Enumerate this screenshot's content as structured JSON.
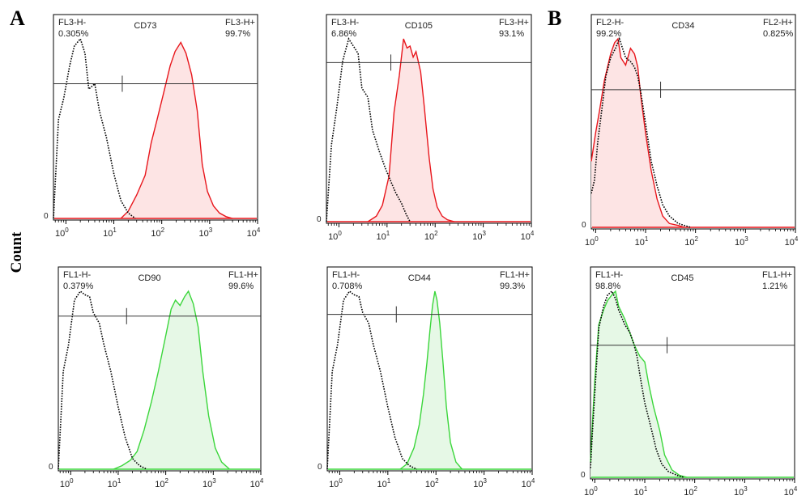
{
  "figure": {
    "panel_letters": [
      "A",
      "B"
    ],
    "ylabel": "Count"
  },
  "colors": {
    "red": "#e8161c",
    "red_fill": "#fde4e4",
    "green": "#3bd63b",
    "green_fill": "#e6f8e6",
    "isotype": "#000000"
  },
  "chart_data": [
    {
      "type": "area",
      "panel": "A",
      "marker": "CD73",
      "gate_left": {
        "label": "FL3-H-",
        "pct": "0.305%"
      },
      "gate_right": {
        "label": "FL3-H+",
        "pct": "99.7%"
      },
      "x_tick_labels": [
        "10^0",
        "10^1",
        "10^2",
        "10^3",
        "10^4"
      ],
      "xlim": [
        0.55,
        10000
      ],
      "xscale": "log",
      "ylim": [
        0,
        100
      ],
      "y_tick_labels": [
        "0"
      ],
      "gate_threshold": 15,
      "gate_level": 75,
      "series": [
        {
          "style": "isotype-dotted",
          "x": [
            0.55,
            0.7,
            0.9,
            1.2,
            1.5,
            2,
            2.5,
            3,
            4,
            5,
            7,
            10,
            14,
            20,
            28
          ],
          "y": [
            0,
            55,
            67,
            85,
            96,
            100,
            92,
            72,
            75,
            60,
            45,
            25,
            10,
            3,
            0
          ]
        },
        {
          "style": "stained-red",
          "x": [
            14,
            20,
            30,
            45,
            60,
            80,
            110,
            150,
            190,
            250,
            320,
            420,
            550,
            700,
            900,
            1200,
            1600,
            2200,
            3000
          ],
          "y": [
            0,
            4,
            13,
            24,
            42,
            55,
            70,
            85,
            93,
            98,
            92,
            80,
            60,
            30,
            15,
            7,
            3,
            1,
            0
          ]
        }
      ]
    },
    {
      "type": "area",
      "panel": "A",
      "marker": "CD105",
      "gate_left": {
        "label": "FL3-H-",
        "pct": "6.86%"
      },
      "gate_right": {
        "label": "FL3-H+",
        "pct": "93.1%"
      },
      "x_tick_labels": [
        "10^0",
        "10^1",
        "10^2",
        "10^3",
        "10^4"
      ],
      "xlim": [
        0.55,
        10000
      ],
      "xscale": "log",
      "ylim": [
        0,
        100
      ],
      "y_tick_labels": [
        "0"
      ],
      "gate_threshold": 12,
      "gate_level": 87,
      "series": [
        {
          "style": "isotype-dotted",
          "x": [
            0.55,
            0.7,
            0.9,
            1.2,
            1.6,
            2,
            2.5,
            3,
            4,
            5,
            7,
            9,
            12,
            15,
            20,
            25,
            30
          ],
          "y": [
            0,
            42,
            62,
            88,
            100,
            96,
            92,
            73,
            68,
            50,
            38,
            30,
            22,
            16,
            10,
            4,
            0
          ]
        },
        {
          "style": "stained-red",
          "x": [
            4,
            6,
            8,
            11,
            14,
            18,
            22,
            26,
            30,
            35,
            40,
            50,
            60,
            75,
            90,
            110,
            140,
            180,
            250
          ],
          "y": [
            0,
            3,
            9,
            25,
            60,
            80,
            100,
            95,
            96,
            90,
            93,
            82,
            62,
            35,
            18,
            8,
            3,
            1,
            0
          ]
        }
      ]
    },
    {
      "type": "area",
      "panel": "B",
      "marker": "CD34",
      "gate_left": {
        "label": "FL2-H-",
        "pct": "99.2%"
      },
      "gate_right": {
        "label": "FL2-H+",
        "pct": "0.825%"
      },
      "x_tick_labels": [
        "10^0",
        "10^1",
        "10^2",
        "10^3",
        "10^4"
      ],
      "xlim": [
        0.82,
        10000
      ],
      "xscale": "log",
      "ylim": [
        0,
        100
      ],
      "y_tick_labels": [
        "0"
      ],
      "gate_threshold": 20,
      "gate_level": 73,
      "series": [
        {
          "style": "isotype-dotted",
          "x": [
            0.82,
            0.95,
            1.1,
            1.3,
            1.6,
            2,
            2.5,
            3,
            4,
            5,
            6,
            7,
            8,
            10,
            13,
            17,
            22,
            30,
            45,
            60,
            80
          ],
          "y": [
            18,
            25,
            45,
            60,
            80,
            90,
            95,
            100,
            90,
            88,
            85,
            80,
            72,
            55,
            35,
            22,
            12,
            6,
            2,
            1,
            0
          ]
        },
        {
          "style": "stained-red",
          "x": [
            0.82,
            0.9,
            1,
            1.2,
            1.5,
            2,
            2.4,
            2.8,
            3.2,
            4,
            5,
            6,
            7,
            8,
            10,
            13,
            17,
            22,
            30,
            45,
            60
          ],
          "y": [
            35,
            42,
            50,
            62,
            78,
            92,
            98,
            100,
            90,
            86,
            95,
            92,
            85,
            70,
            50,
            30,
            15,
            6,
            2,
            1,
            0
          ]
        }
      ]
    },
    {
      "type": "area",
      "panel": "A",
      "marker": "CD90",
      "gate_left": {
        "label": "FL1-H-",
        "pct": "0.379%"
      },
      "gate_right": {
        "label": "FL1-H+",
        "pct": "99.6%"
      },
      "x_tick_labels": [
        "10^0",
        "10^1",
        "10^2",
        "10^3",
        "10^4"
      ],
      "xlim": [
        0.55,
        10000
      ],
      "xscale": "log",
      "ylim": [
        0,
        100
      ],
      "y_tick_labels": [
        "0"
      ],
      "gate_threshold": 15,
      "gate_level": 86,
      "series": [
        {
          "style": "isotype-dotted",
          "x": [
            0.55,
            0.7,
            0.9,
            1.2,
            1.6,
            2,
            2.5,
            3,
            4,
            5,
            7,
            10,
            14,
            20,
            28,
            40
          ],
          "y": [
            0,
            55,
            70,
            95,
            100,
            98,
            97,
            88,
            82,
            70,
            55,
            35,
            18,
            6,
            2,
            0
          ]
        },
        {
          "style": "stained-red",
          "x": [
            8,
            12,
            18,
            25,
            35,
            50,
            70,
            100,
            130,
            160,
            200,
            250,
            300,
            380,
            480,
            600,
            800,
            1100,
            1500,
            2200
          ],
          "y": [
            0,
            2,
            5,
            10,
            22,
            38,
            55,
            75,
            90,
            95,
            92,
            97,
            100,
            93,
            80,
            55,
            30,
            12,
            4,
            0
          ]
        }
      ]
    },
    {
      "type": "area",
      "panel": "A",
      "marker": "CD44",
      "gate_left": {
        "label": "FL1-H-",
        "pct": "0.708%"
      },
      "gate_right": {
        "label": "FL1-H+",
        "pct": "99.3%"
      },
      "x_tick_labels": [
        "10^0",
        "10^1",
        "10^2",
        "10^3",
        "10^4"
      ],
      "xlim": [
        0.55,
        10000
      ],
      "xscale": "log",
      "ylim": [
        0,
        100
      ],
      "y_tick_labels": [
        "0"
      ],
      "gate_threshold": 15,
      "gate_level": 87,
      "series": [
        {
          "style": "isotype-dotted",
          "x": [
            0.55,
            0.7,
            0.9,
            1.2,
            1.6,
            2,
            2.5,
            3,
            4,
            5,
            7,
            10,
            14,
            20,
            28,
            40
          ],
          "y": [
            0,
            55,
            70,
            95,
            100,
            98,
            97,
            88,
            82,
            70,
            55,
            35,
            18,
            6,
            2,
            0
          ]
        },
        {
          "style": "stained-red",
          "x": [
            18,
            25,
            35,
            45,
            55,
            65,
            75,
            85,
            95,
            105,
            120,
            140,
            165,
            200,
            260,
            350
          ],
          "y": [
            0,
            3,
            12,
            25,
            42,
            60,
            78,
            92,
            100,
            95,
            82,
            60,
            35,
            15,
            4,
            0
          ]
        }
      ]
    },
    {
      "type": "area",
      "panel": "B",
      "marker": "CD45",
      "gate_left": {
        "label": "FL1-H-",
        "pct": "98.8%"
      },
      "gate_right": {
        "label": "FL1-H+",
        "pct": "1.21%"
      },
      "x_tick_labels": [
        "10^0",
        "10^1",
        "10^2",
        "10^3",
        "10^4"
      ],
      "xlim": [
        0.82,
        10000
      ],
      "xscale": "log",
      "ylim": [
        0,
        100
      ],
      "y_tick_labels": [
        "0"
      ],
      "gate_threshold": 28,
      "gate_level": 71,
      "series": [
        {
          "style": "isotype-dotted",
          "x": [
            0.82,
            0.9,
            1,
            1.2,
            1.5,
            1.8,
            2.2,
            2.6,
            3,
            4,
            5,
            6,
            7,
            8,
            10,
            13,
            17,
            22,
            30,
            45,
            60
          ],
          "y": [
            5,
            25,
            45,
            80,
            92,
            98,
            100,
            96,
            90,
            82,
            78,
            72,
            65,
            55,
            40,
            28,
            15,
            7,
            3,
            1,
            0
          ]
        },
        {
          "style": "stained-red",
          "x": [
            0.82,
            0.9,
            1,
            1.2,
            1.5,
            1.8,
            2.2,
            2.6,
            3,
            4,
            5,
            6,
            7,
            8,
            10,
            12,
            15,
            20,
            25,
            35,
            50,
            70
          ],
          "y": [
            8,
            30,
            52,
            82,
            90,
            95,
            98,
            100,
            92,
            85,
            78,
            72,
            68,
            65,
            62,
            50,
            38,
            25,
            12,
            4,
            1,
            0
          ]
        }
      ]
    }
  ]
}
